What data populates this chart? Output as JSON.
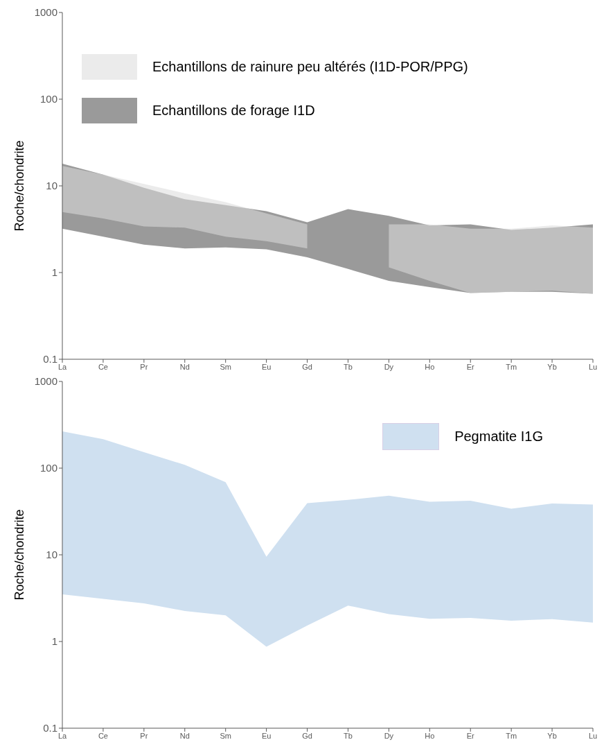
{
  "chart_data": [
    {
      "type": "area",
      "categories": [
        "La",
        "Ce",
        "Pr",
        "Nd",
        "Sm",
        "Eu",
        "Gd",
        "Tb",
        "Dy",
        "Ho",
        "Er",
        "Tm",
        "Yb",
        "Lu"
      ],
      "ylabel": "Roche/chondrite",
      "log": true,
      "ylim": [
        0.1,
        1000
      ],
      "yticks": [
        0.1,
        1,
        10,
        100,
        1000
      ],
      "legend": "top left",
      "grid": false,
      "series": [
        {
          "name": "Echantillons de rainure peu altérés (I1D-POR/PPG)",
          "color": "#dcdcdc",
          "values": [
            null,
            null,
            null,
            null,
            null,
            null,
            null,
            null,
            null,
            null,
            null,
            null,
            null,
            null
          ],
          "lower": [
            5,
            4.2,
            3.4,
            3.3,
            2.6,
            2.3,
            1.9,
            null,
            1.15,
            0.8,
            0.58,
            0.6,
            0.62,
            0.57
          ],
          "upper": [
            17,
            13.5,
            10.5,
            8.2,
            6.5,
            4.8,
            3.6,
            null,
            3.6,
            3.6,
            3.2,
            3.2,
            3.5,
            3.3
          ]
        },
        {
          "name": "Echantillons de forage I1D",
          "color": "#9a9a9a",
          "values": [
            null,
            null,
            null,
            null,
            null,
            null,
            null,
            null,
            null,
            null,
            null,
            null,
            null,
            null
          ],
          "lower": [
            3.2,
            2.6,
            2.1,
            1.9,
            1.95,
            1.85,
            1.5,
            1.1,
            0.8,
            0.68,
            0.58,
            0.6,
            0.6,
            0.57
          ],
          "upper": [
            18,
            13.5,
            9.5,
            7,
            6,
            5.1,
            3.8,
            5.4,
            4.5,
            3.5,
            3.6,
            3.1,
            3.3,
            3.6
          ]
        }
      ]
    },
    {
      "type": "area",
      "categories": [
        "La",
        "Ce",
        "Pr",
        "Nd",
        "Sm",
        "Eu",
        "Gd",
        "Tb",
        "Dy",
        "Ho",
        "Er",
        "Tm",
        "Yb",
        "Lu"
      ],
      "ylabel": "Roche/chondrite",
      "log": true,
      "ylim": [
        0.1,
        1000
      ],
      "yticks": [
        0.1,
        1,
        10,
        100,
        1000
      ],
      "legend": "top right",
      "grid": false,
      "series": [
        {
          "name": "Pegmatite I1G",
          "color": "#cfe0f0",
          "values": [
            null,
            null,
            null,
            null,
            null,
            null,
            null,
            null,
            null,
            null,
            null,
            null,
            null,
            null
          ],
          "lower": [
            3.5,
            3.1,
            2.75,
            2.25,
            2,
            0.87,
            1.53,
            2.6,
            2.07,
            1.83,
            1.87,
            1.74,
            1.81,
            1.65
          ],
          "upper": [
            266,
            216,
            153,
            109,
            69,
            9.5,
            39.5,
            43,
            48,
            41,
            42,
            34,
            39,
            38
          ]
        }
      ]
    }
  ]
}
